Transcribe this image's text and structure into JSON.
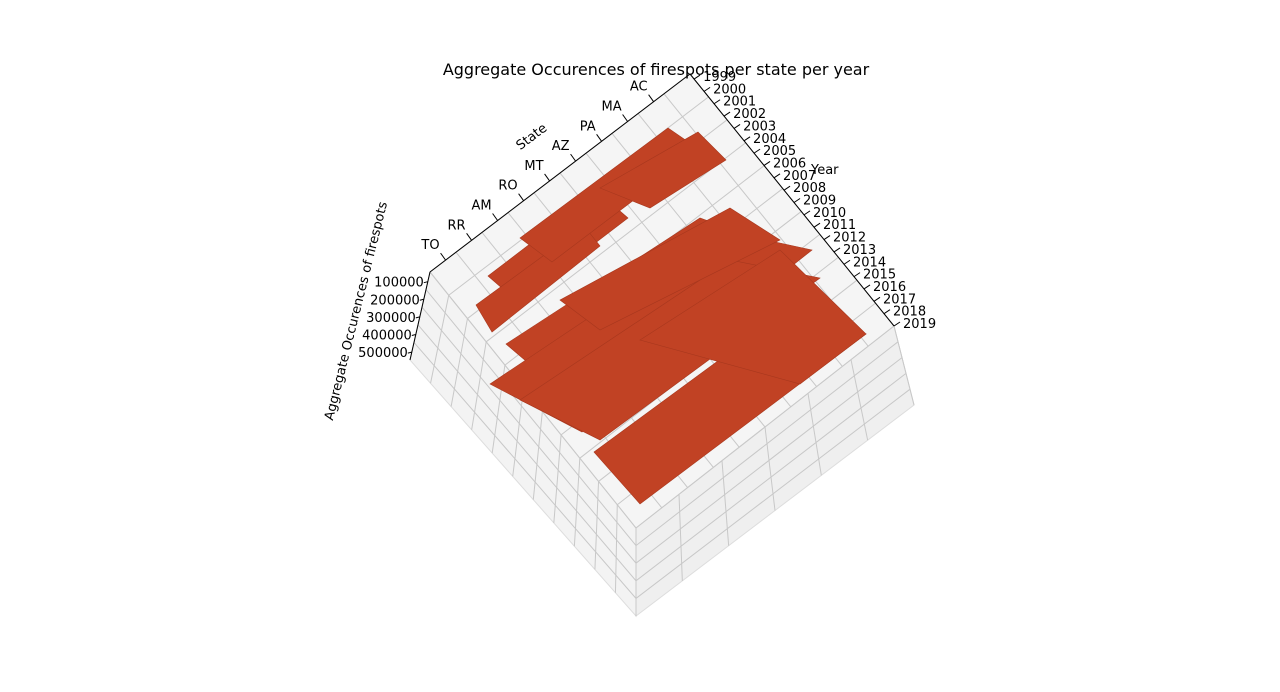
{
  "chart_data": {
    "type": "bar3d",
    "title": "Aggregate Occurences of firespots per state per year",
    "xlabel": "State",
    "ylabel": "Year",
    "zlabel": "Aggregate Occurences of firespots",
    "states": [
      "TO",
      "RR",
      "AM",
      "RO",
      "MT",
      "AZ",
      "PA",
      "MA",
      "AC"
    ],
    "years": [
      "1999",
      "2000",
      "2001",
      "2002",
      "2003",
      "2004",
      "2005",
      "2006",
      "2007",
      "2008",
      "2009",
      "2010",
      "2011",
      "2012",
      "2013",
      "2014",
      "2015",
      "2016",
      "2017",
      "2018",
      "2019"
    ],
    "z_ticks": [
      "100000",
      "200000",
      "300000",
      "400000",
      "500000"
    ],
    "bar_color": "#c14224",
    "grid": true
  }
}
